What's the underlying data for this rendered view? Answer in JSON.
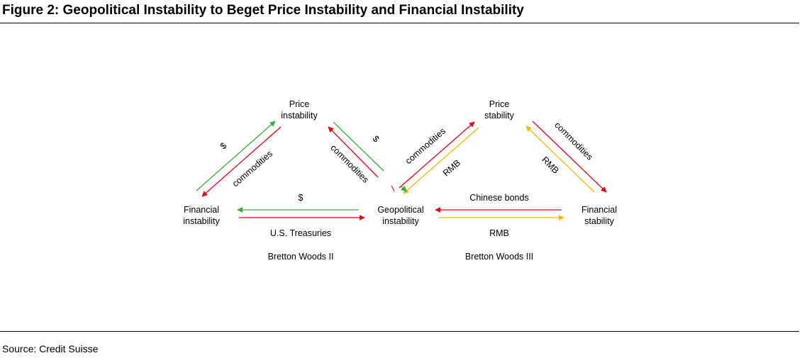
{
  "figure": {
    "title": "Figure 2: Geopolitical Instability to Beget Price Instability and Financial Instability",
    "source": "Source: Credit Suisse"
  },
  "colors": {
    "green": "#3aaa35",
    "red": "#e30613",
    "yellow": "#f5b800"
  },
  "left": {
    "price_node": [
      "Price",
      "instability"
    ],
    "financial_node": [
      "Financial",
      "instability"
    ],
    "dollar_left": "$",
    "commodities_left": "commodities",
    "commodities_right": "commodities",
    "dollar_right": "$",
    "dollar_bottom": "$",
    "treasuries": "U.S. Treasuries",
    "system": "Bretton Woods II"
  },
  "center_node": [
    "Geopolitical",
    "instability"
  ],
  "right": {
    "price_node": [
      "Price",
      "stability"
    ],
    "financial_node": [
      "Financial",
      "stability"
    ],
    "commodities_left": "commodities",
    "rmb_left": "RMB",
    "commodities_right": "commodities",
    "rmb_right": "RMB",
    "chinese_bonds": "Chinese bonds",
    "rmb_bottom": "RMB",
    "system": "Bretton Woods III"
  }
}
